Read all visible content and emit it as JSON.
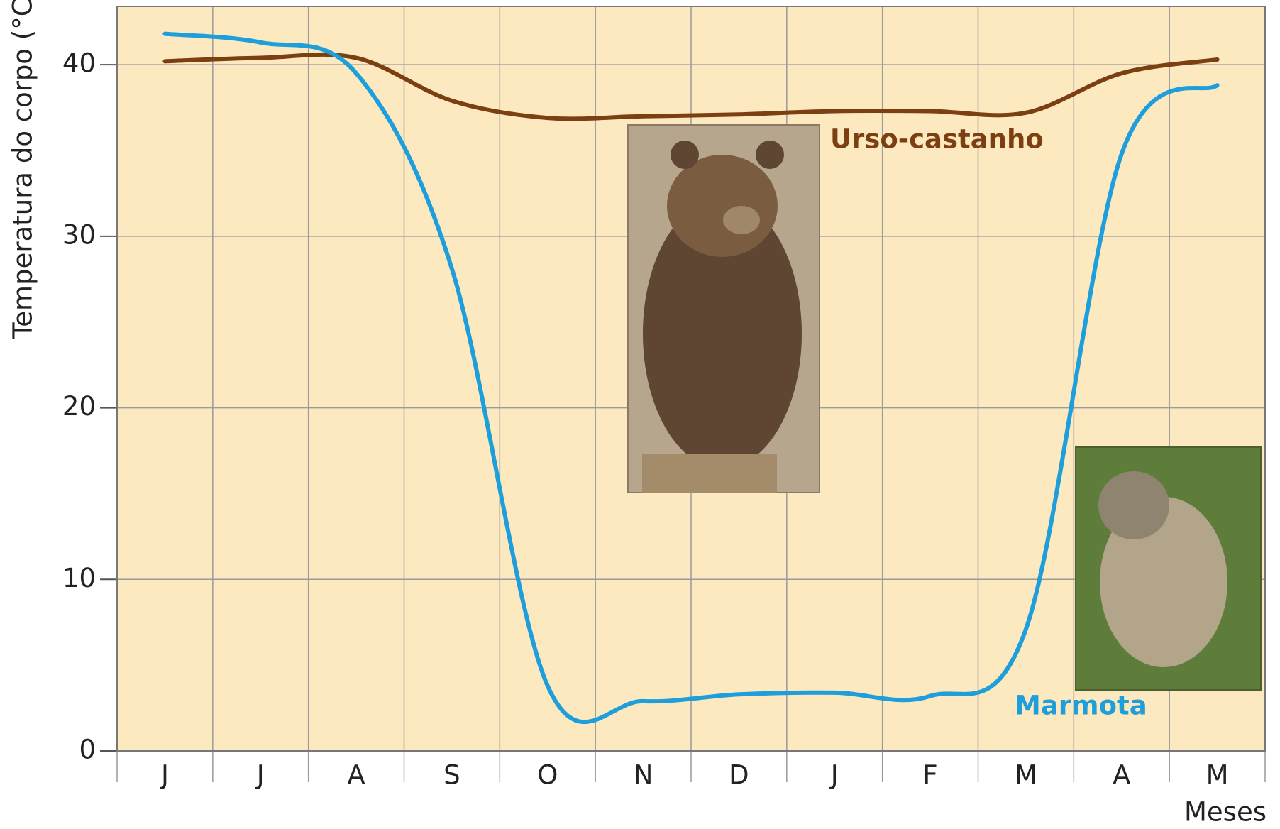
{
  "chart_data": {
    "type": "line",
    "y_label": "Temperatura do corpo (°C)",
    "x_label": "Meses",
    "categories": [
      "J",
      "J",
      "A",
      "S",
      "O",
      "N",
      "D",
      "J",
      "F",
      "M",
      "A",
      "M"
    ],
    "series": [
      {
        "name": "Urso-castanho",
        "color": "#7b3f12",
        "values": [
          40.2,
          40.4,
          40.4,
          37.9,
          36.9,
          37.0,
          37.1,
          37.3,
          37.3,
          37.2,
          39.5,
          40.3
        ]
      },
      {
        "name": "Marmota",
        "color": "#1e9fdb",
        "values": [
          41.8,
          41.3,
          39.5,
          28.1,
          3.8,
          2.9,
          3.3,
          3.4,
          3.2,
          7.1,
          34.8,
          38.8
        ]
      }
    ],
    "ylim": [
      0,
      43.4
    ],
    "yticks": [
      0,
      10,
      20,
      30,
      40
    ],
    "grid": true
  }
}
